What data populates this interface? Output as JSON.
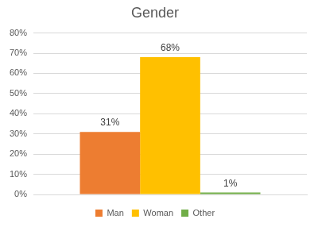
{
  "chart_data": {
    "type": "bar",
    "title": "Gender",
    "categories": [
      null
    ],
    "series": [
      {
        "name": "Man",
        "color": "#ed7d31",
        "values": [
          31
        ],
        "value_labels": [
          "31%"
        ]
      },
      {
        "name": "Woman",
        "color": "#ffc000",
        "values": [
          68
        ],
        "value_labels": [
          "68%"
        ]
      },
      {
        "name": "Other",
        "color": "#70ad47",
        "values": [
          1
        ],
        "value_labels": [
          "1%"
        ]
      }
    ],
    "ylim": [
      0,
      80
    ],
    "yticks": [
      {
        "value": 0,
        "label": "0%"
      },
      {
        "value": 10,
        "label": "10%"
      },
      {
        "value": 20,
        "label": "20%"
      },
      {
        "value": 30,
        "label": "30%"
      },
      {
        "value": 40,
        "label": "40%"
      },
      {
        "value": 50,
        "label": "50%"
      },
      {
        "value": 60,
        "label": "60%"
      },
      {
        "value": 70,
        "label": "70%"
      },
      {
        "value": 80,
        "label": "80%"
      }
    ],
    "grid": true,
    "legend": "bottom",
    "data_labels": true,
    "tick_labels": "y"
  }
}
